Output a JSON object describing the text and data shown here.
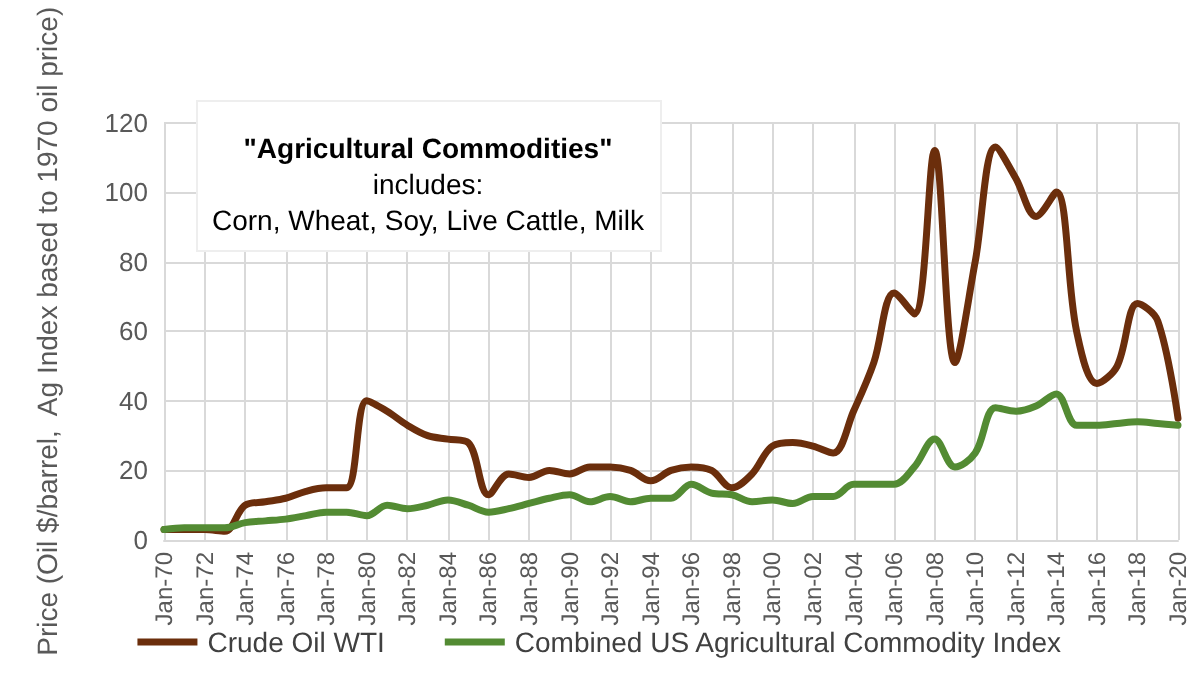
{
  "chart_data": {
    "type": "line",
    "ylabel": "Price (Oil $/barrel,  Ag Index based to 1970 oil price)",
    "categories": [
      "Jan-70",
      null,
      "Jan-72",
      null,
      "Jan-74",
      null,
      "Jan-76",
      null,
      "Jan-78",
      null,
      "Jan-80",
      null,
      "Jan-82",
      null,
      "Jan-84",
      null,
      "Jan-86",
      null,
      "Jan-88",
      null,
      "Jan-90",
      null,
      "Jan-92",
      null,
      "Jan-94",
      null,
      "Jan-96",
      null,
      "Jan-98",
      null,
      "Jan-00",
      null,
      "Jan-02",
      null,
      "Jan-04",
      null,
      "Jan-06",
      null,
      "Jan-08",
      null,
      "Jan-10",
      null,
      "Jan-12",
      null,
      "Jan-14",
      null,
      "Jan-16",
      null,
      "Jan-18",
      null,
      "Jan-20"
    ],
    "series": [
      {
        "name": "Crude Oil WTI",
        "color": "#6b2e0c",
        "values": [
          3,
          3,
          3,
          2.5,
          10,
          11,
          12,
          14,
          15,
          15,
          40,
          37,
          33,
          30,
          29,
          28,
          13,
          19,
          18,
          20,
          19,
          21,
          21,
          20,
          17,
          20,
          21,
          20,
          15,
          19,
          27,
          28,
          27,
          25,
          37,
          51,
          71,
          65,
          112,
          51,
          80,
          113,
          104,
          93,
          100,
          60,
          45,
          50,
          68,
          63,
          35
        ]
      },
      {
        "name": "Combined US Agricultural Commodity Index",
        "color": "#538b33",
        "values": [
          3,
          3.5,
          3.5,
          3.5,
          5,
          5.5,
          6,
          7,
          8,
          8,
          7,
          10,
          9,
          10,
          11.5,
          10,
          8,
          9,
          10.5,
          12,
          13,
          11,
          12.5,
          11,
          12,
          12,
          16,
          13.5,
          13,
          11,
          11.5,
          10.5,
          12.5,
          12.5,
          16,
          16,
          16,
          21,
          29,
          21,
          25,
          38,
          37,
          38.5,
          42,
          33,
          33,
          33.5,
          34,
          33.5,
          33
        ]
      }
    ],
    "ylim": [
      0,
      120
    ],
    "yticks": [
      0,
      20,
      40,
      60,
      80,
      100,
      120
    ],
    "grid": true,
    "legend": "bottom",
    "marker": "none",
    "line_style": "solid",
    "annotations": [
      "\"Agricultural Commodities\"",
      "includes:",
      "Corn, Wheat, Soy, Live Cattle, Milk"
    ]
  }
}
